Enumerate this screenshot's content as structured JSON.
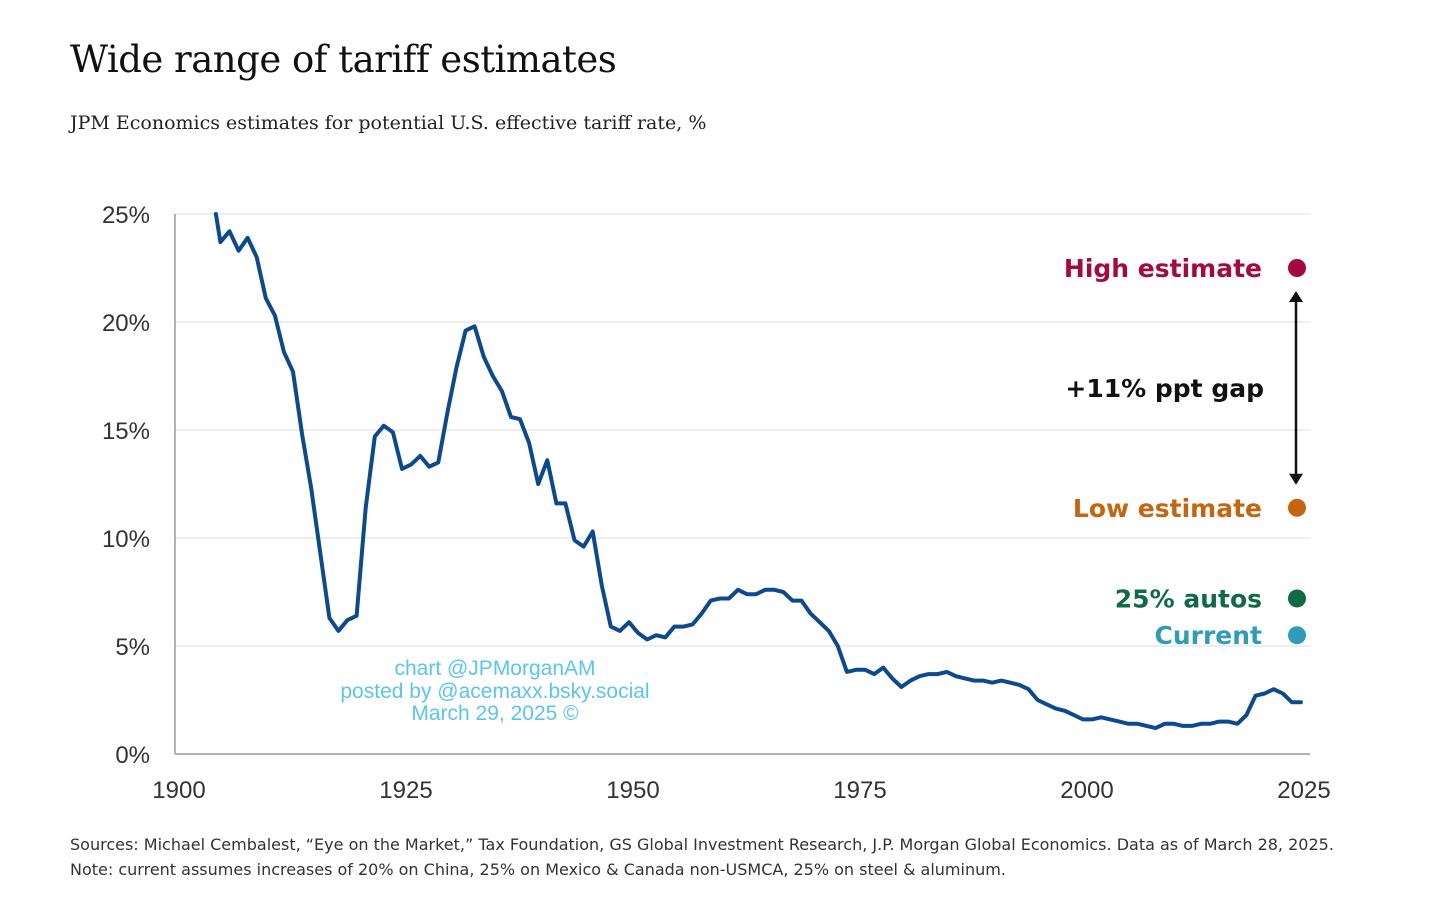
{
  "title": "Wide range of tariff estimates",
  "subtitle": "JPM Economics estimates for potential U.S. effective tariff rate, %",
  "watermark": [
    "chart @JPMorganAM",
    "posted by @acemaxx.bsky.social",
    "March 29, 2025 ©"
  ],
  "footer": {
    "sources": "Sources: Michael Cembalest, “Eye on the Market,” Tax Foundation, GS Global Investment Research, J.P. Morgan Global Economics. Data as of March 28, 2025.",
    "note": "Note: current assumes increases of 20% on China, 25% on Mexico & Canada non-USMCA, 25% on steel & aluminum."
  },
  "colors": {
    "line": "#0b4a8f",
    "high": "#a5093e",
    "low": "#c5650f",
    "autos": "#0e6b45",
    "current": "#2f9db8",
    "watermark": "#5bc4f0",
    "grid": "#e3e3e3",
    "axis": "#999999"
  },
  "chart_data": {
    "type": "line",
    "xlim": [
      1900,
      2025
    ],
    "ylim": [
      0,
      25
    ],
    "x_ticks": [
      1900,
      1925,
      1950,
      1975,
      2000,
      2025
    ],
    "y_ticks": [
      0,
      5,
      10,
      15,
      20,
      25
    ],
    "y_tick_labels": [
      "0%",
      "5%",
      "10%",
      "15%",
      "20%",
      "25%"
    ],
    "grid": "horizontal",
    "series": [
      {
        "x": [
          1904.5,
          1905,
          1906,
          1907,
          1908,
          1909,
          1910,
          1911,
          1912,
          1913,
          1914,
          1915,
          1916,
          1917,
          1918,
          1919,
          1920,
          1921,
          1922,
          1923,
          1924,
          1925,
          1926,
          1927,
          1928,
          1929,
          1930,
          1931,
          1932,
          1933,
          1934,
          1935,
          1936,
          1937,
          1938,
          1939,
          1940,
          1941,
          1942,
          1943,
          1944,
          1945,
          1946,
          1947,
          1948,
          1949,
          1950,
          1951,
          1952,
          1953,
          1954,
          1955,
          1956,
          1957,
          1958,
          1959,
          1960,
          1961,
          1962,
          1963,
          1964,
          1965,
          1966,
          1967,
          1968,
          1969,
          1970,
          1971,
          1972,
          1973,
          1974,
          1975,
          1976,
          1977,
          1978,
          1979,
          1980,
          1981,
          1982,
          1983,
          1984,
          1985,
          1986,
          1987,
          1988,
          1989,
          1990,
          1991,
          1992,
          1993,
          1994,
          1995,
          1996,
          1997,
          1998,
          1999,
          2000,
          2001,
          2002,
          2003,
          2004,
          2005,
          2006,
          2007,
          2008,
          2009,
          2010,
          2011,
          2012,
          2013,
          2014,
          2015,
          2016,
          2017,
          2018,
          2019,
          2020,
          2021,
          2022,
          2023,
          2024
        ],
        "values": [
          25.0,
          23.7,
          24.2,
          23.3,
          23.9,
          23.0,
          21.1,
          20.3,
          18.6,
          17.7,
          14.8,
          12.3,
          9.3,
          6.3,
          5.7,
          6.2,
          6.4,
          11.4,
          14.7,
          15.2,
          14.9,
          13.2,
          13.4,
          13.8,
          13.3,
          13.5,
          15.8,
          17.9,
          19.6,
          19.8,
          18.4,
          17.5,
          16.8,
          15.6,
          15.5,
          14.4,
          12.5,
          13.6,
          11.6,
          11.6,
          9.9,
          9.6,
          10.3,
          7.8,
          5.9,
          5.7,
          6.1,
          5.6,
          5.3,
          5.5,
          5.4,
          5.9,
          5.9,
          6.0,
          6.5,
          7.1,
          7.2,
          7.2,
          7.6,
          7.4,
          7.4,
          7.6,
          7.6,
          7.5,
          7.1,
          7.1,
          6.5,
          6.1,
          5.7,
          5.0,
          3.8,
          3.9,
          3.9,
          3.7,
          4.0,
          3.5,
          3.1,
          3.4,
          3.6,
          3.7,
          3.7,
          3.8,
          3.6,
          3.5,
          3.4,
          3.4,
          3.3,
          3.4,
          3.3,
          3.2,
          3.0,
          2.5,
          2.3,
          2.1,
          2.0,
          1.8,
          1.6,
          1.6,
          1.7,
          1.6,
          1.5,
          1.4,
          1.4,
          1.3,
          1.2,
          1.4,
          1.4,
          1.3,
          1.3,
          1.4,
          1.4,
          1.5,
          1.5,
          1.4,
          1.8,
          2.7,
          2.8,
          3.0,
          2.8,
          2.4,
          2.4
        ]
      }
    ],
    "markers": [
      {
        "key": "high",
        "label": "High estimate",
        "value": 22.5
      },
      {
        "key": "low",
        "label": "Low estimate",
        "value": 11.4
      },
      {
        "key": "autos",
        "label": "25% autos",
        "value": 7.2
      },
      {
        "key": "current",
        "label": "Current",
        "value": 5.5
      }
    ],
    "gap_label": "+11% ppt gap"
  }
}
